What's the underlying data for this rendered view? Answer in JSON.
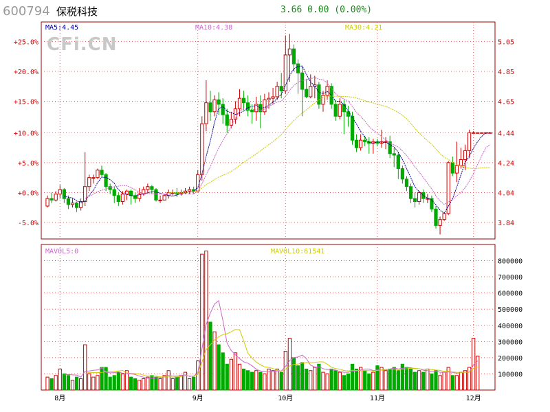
{
  "header": {
    "code": "600794",
    "name": "保税科技",
    "price": "3.66",
    "change": "0.00",
    "change_pct": "(0.00%)"
  },
  "watermark": "CFi.CN",
  "colors": {
    "up": "#cc0000",
    "down": "#00aa00",
    "ma5": "#000099",
    "ma10": "#cc66cc",
    "ma30": "#cccc00",
    "grid": "#cc6666",
    "frame": "#990000"
  },
  "chart_data": [
    {
      "type": "candlestick",
      "ma_labels": [
        "MA5:4.45",
        "MA10:4.38",
        "MA30:4.21"
      ],
      "y_left_ticks": [
        "+25.0%",
        "+20.0%",
        "+15.0%",
        "+10.0%",
        "+5.0%",
        "+0.0%",
        "-5.0%"
      ],
      "y_right_ticks": [
        "5.05",
        "4.85",
        "4.65",
        "4.44",
        "4.24",
        "4.04",
        "3.84"
      ],
      "x_ticks": [
        "8月",
        "9月",
        "10月",
        "11月",
        "12月"
      ],
      "ylim": [
        3.73,
        5.18
      ],
      "candles": [
        [
          3.95,
          4.0,
          4.02,
          3.94
        ],
        [
          4.0,
          3.99,
          4.04,
          3.97
        ],
        [
          3.99,
          4.03,
          4.05,
          3.98
        ],
        [
          4.03,
          4.06,
          4.09,
          4.0
        ],
        [
          4.06,
          4.0,
          4.07,
          3.97
        ],
        [
          4.0,
          3.96,
          4.02,
          3.93
        ],
        [
          3.96,
          3.97,
          4.0,
          3.94
        ],
        [
          3.97,
          3.94,
          3.98,
          3.91
        ],
        [
          3.94,
          3.98,
          4.0,
          3.92
        ],
        [
          3.98,
          4.08,
          4.31,
          3.95
        ],
        [
          4.08,
          4.14,
          4.16,
          4.05
        ],
        [
          4.14,
          4.14,
          4.16,
          4.1
        ],
        [
          4.14,
          4.19,
          4.2,
          4.13
        ],
        [
          4.19,
          4.16,
          4.22,
          4.14
        ],
        [
          4.16,
          4.08,
          4.17,
          4.05
        ],
        [
          4.08,
          4.06,
          4.1,
          4.03
        ],
        [
          4.06,
          4.02,
          4.08,
          3.97
        ],
        [
          4.02,
          3.98,
          4.04,
          3.95
        ],
        [
          3.98,
          4.03,
          4.05,
          3.96
        ],
        [
          4.03,
          4.05,
          4.06,
          3.99
        ],
        [
          4.05,
          4.02,
          4.06,
          3.96
        ],
        [
          4.02,
          4.0,
          4.04,
          3.97
        ],
        [
          4.0,
          4.03,
          4.07,
          3.98
        ],
        [
          4.03,
          4.06,
          4.08,
          4.02
        ],
        [
          4.06,
          4.08,
          4.1,
          4.04
        ],
        [
          4.08,
          4.06,
          4.09,
          4.03
        ],
        [
          4.06,
          3.99,
          4.07,
          3.98
        ],
        [
          3.99,
          3.99,
          4.02,
          3.97
        ],
        [
          3.99,
          4.02,
          4.03,
          3.99
        ],
        [
          4.02,
          4.04,
          4.06,
          4.0
        ],
        [
          4.04,
          4.04,
          4.06,
          4.02
        ],
        [
          4.04,
          4.03,
          4.07,
          4.01
        ],
        [
          4.03,
          4.04,
          4.06,
          4.02
        ],
        [
          4.04,
          4.05,
          4.07,
          4.03
        ],
        [
          4.05,
          4.06,
          4.08,
          4.03
        ],
        [
          4.06,
          4.05,
          4.08,
          4.03
        ],
        [
          4.05,
          4.16,
          4.19,
          4.05
        ],
        [
          4.16,
          4.5,
          4.55,
          4.12
        ],
        [
          4.5,
          4.64,
          4.79,
          4.45
        ],
        [
          4.64,
          4.58,
          4.72,
          4.52
        ],
        [
          4.58,
          4.66,
          4.69,
          4.55
        ],
        [
          4.66,
          4.63,
          4.71,
          4.56
        ],
        [
          4.63,
          4.56,
          4.67,
          4.5
        ],
        [
          4.56,
          4.49,
          4.6,
          4.44
        ],
        [
          4.49,
          4.53,
          4.58,
          4.47
        ],
        [
          4.53,
          4.6,
          4.65,
          4.5
        ],
        [
          4.6,
          4.67,
          4.73,
          4.55
        ],
        [
          4.67,
          4.64,
          4.72,
          4.59
        ],
        [
          4.64,
          4.59,
          4.69,
          4.55
        ],
        [
          4.59,
          4.58,
          4.63,
          4.5
        ],
        [
          4.58,
          4.63,
          4.68,
          4.52
        ],
        [
          4.63,
          4.58,
          4.69,
          4.47
        ],
        [
          4.58,
          4.66,
          4.7,
          4.56
        ],
        [
          4.66,
          4.67,
          4.71,
          4.6
        ],
        [
          4.67,
          4.68,
          4.74,
          4.63
        ],
        [
          4.68,
          4.75,
          4.78,
          4.66
        ],
        [
          4.75,
          4.72,
          4.84,
          4.67
        ],
        [
          4.72,
          4.96,
          5.09,
          4.7
        ],
        [
          4.96,
          5.0,
          5.1,
          4.78
        ],
        [
          5.0,
          4.9,
          5.03,
          4.85
        ],
        [
          4.9,
          4.84,
          4.93,
          4.7
        ],
        [
          4.84,
          4.73,
          4.88,
          4.55
        ],
        [
          4.73,
          4.68,
          4.8,
          4.67
        ],
        [
          4.68,
          4.75,
          4.83,
          4.67
        ],
        [
          4.75,
          4.76,
          4.82,
          4.67
        ],
        [
          4.76,
          4.63,
          4.78,
          4.6
        ],
        [
          4.63,
          4.69,
          4.72,
          4.58
        ],
        [
          4.69,
          4.75,
          4.79,
          4.66
        ],
        [
          4.75,
          4.63,
          4.77,
          4.6
        ],
        [
          4.63,
          4.55,
          4.66,
          4.52
        ],
        [
          4.55,
          4.63,
          4.67,
          4.53
        ],
        [
          4.63,
          4.58,
          4.66,
          4.43
        ],
        [
          4.58,
          4.55,
          4.62,
          4.48
        ],
        [
          4.55,
          4.39,
          4.58,
          4.36
        ],
        [
          4.39,
          4.34,
          4.43,
          4.31
        ],
        [
          4.34,
          4.39,
          4.43,
          4.32
        ],
        [
          4.39,
          4.38,
          4.42,
          4.35
        ],
        [
          4.38,
          4.37,
          4.41,
          4.3
        ],
        [
          4.37,
          4.38,
          4.4,
          4.3
        ],
        [
          4.38,
          4.37,
          4.4,
          4.35
        ],
        [
          4.37,
          4.38,
          4.46,
          4.34
        ],
        [
          4.38,
          4.38,
          4.41,
          4.33
        ],
        [
          4.38,
          4.3,
          4.42,
          4.27
        ],
        [
          4.3,
          4.29,
          4.34,
          4.21
        ],
        [
          4.29,
          4.2,
          4.31,
          4.13
        ],
        [
          4.2,
          4.13,
          4.22,
          4.1
        ],
        [
          4.13,
          4.08,
          4.15,
          4.05
        ],
        [
          4.08,
          4.0,
          4.1,
          3.97
        ],
        [
          4.0,
          3.98,
          4.04,
          3.94
        ],
        [
          3.98,
          4.04,
          4.05,
          3.96
        ],
        [
          4.04,
          4.0,
          4.06,
          3.97
        ],
        [
          4.0,
          4.0,
          4.03,
          3.97
        ],
        [
          4.0,
          3.93,
          4.02,
          3.91
        ],
        [
          3.93,
          3.82,
          3.95,
          3.8
        ],
        [
          3.82,
          3.86,
          3.88,
          3.76
        ],
        [
          3.86,
          3.9,
          3.91,
          3.85
        ],
        [
          3.9,
          4.24,
          4.25,
          3.89
        ],
        [
          4.24,
          4.17,
          4.28,
          4.15
        ],
        [
          4.17,
          4.22,
          4.38,
          4.11
        ],
        [
          4.22,
          4.26,
          4.34,
          4.2
        ],
        [
          4.26,
          4.32,
          4.36,
          4.19
        ],
        [
          4.32,
          4.44,
          4.46,
          4.27
        ],
        [
          4.44,
          4.44,
          4.45,
          4.44
        ],
        [
          4.44,
          4.44,
          4.44,
          4.44
        ],
        [
          4.44,
          4.44,
          4.44,
          4.44
        ],
        [
          4.44,
          4.44,
          4.44,
          4.44
        ],
        [
          4.44,
          4.44,
          4.44,
          4.44
        ]
      ]
    },
    {
      "type": "bar",
      "labels": [
        "MAVOL5:0",
        "MAVOL10:61541"
      ],
      "y_ticks": [
        "800000",
        "700000",
        "600000",
        "500000",
        "400000",
        "300000",
        "200000",
        "100000"
      ],
      "ylim": [
        0,
        900000
      ],
      "volumes": [
        80000,
        70000,
        90000,
        130000,
        100000,
        90000,
        60000,
        80000,
        70000,
        280000,
        100000,
        80000,
        90000,
        140000,
        140000,
        80000,
        90000,
        110000,
        100000,
        120000,
        80000,
        70000,
        60000,
        70000,
        80000,
        90000,
        80000,
        70000,
        90000,
        120000,
        70000,
        80000,
        90000,
        110000,
        70000,
        80000,
        180000,
        840000,
        860000,
        420000,
        360000,
        280000,
        230000,
        160000,
        190000,
        230000,
        160000,
        130000,
        120000,
        110000,
        120000,
        110000,
        100000,
        130000,
        120000,
        130000,
        110000,
        240000,
        320000,
        200000,
        150000,
        170000,
        130000,
        120000,
        140000,
        160000,
        110000,
        100000,
        130000,
        120000,
        110000,
        90000,
        100000,
        160000,
        130000,
        140000,
        120000,
        100000,
        110000,
        150000,
        140000,
        120000,
        130000,
        140000,
        120000,
        160000,
        140000,
        130000,
        110000,
        120000,
        110000,
        130000,
        100000,
        120000,
        90000,
        110000,
        140000,
        90000,
        90000,
        110000,
        120000,
        140000,
        320000,
        210000
      ]
    }
  ]
}
